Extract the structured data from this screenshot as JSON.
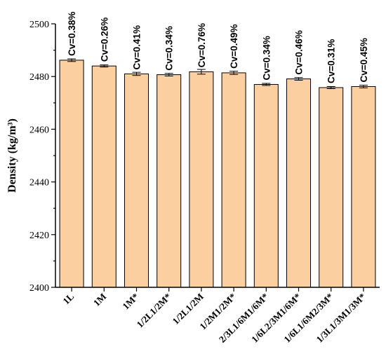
{
  "chart_data": {
    "type": "bar",
    "ylabel": "Density (kg/m³)",
    "ylim": [
      2400,
      2500
    ],
    "yticks": [
      2400,
      2420,
      2440,
      2460,
      2480,
      2500
    ],
    "categories": [
      "1L",
      "1M",
      "1M*",
      "1/2L1/2M*",
      "1/2L1/2M",
      "1/2M1/2M*",
      "2/3L1/6M1/6M*",
      "1/6L2/3M1/6M*",
      "1/6L1/6M2/3M*",
      "1/3L1/3M1/3M*"
    ],
    "values": [
      2486.2,
      2484.0,
      2481.0,
      2480.7,
      2481.8,
      2481.4,
      2477.0,
      2479.1,
      2475.8,
      2476.2
    ],
    "errors": [
      0.5,
      0.4,
      0.6,
      0.5,
      0.9,
      0.6,
      0.4,
      0.5,
      0.4,
      0.5
    ],
    "data_labels": [
      "Cv=0.38%",
      "Cv=0.26%",
      "Cv=0.41%",
      "Cv=0.34%",
      "Cv=0.76%",
      "Cv=0.49%",
      "Cv=0.34%",
      "Cv=0.46%",
      "Cv=0.31%",
      "Cv=0.45%"
    ],
    "colors": {
      "bar_fill": "#fbcf9f",
      "bar_stroke": "#000000"
    },
    "grid": false,
    "legend": "none"
  }
}
